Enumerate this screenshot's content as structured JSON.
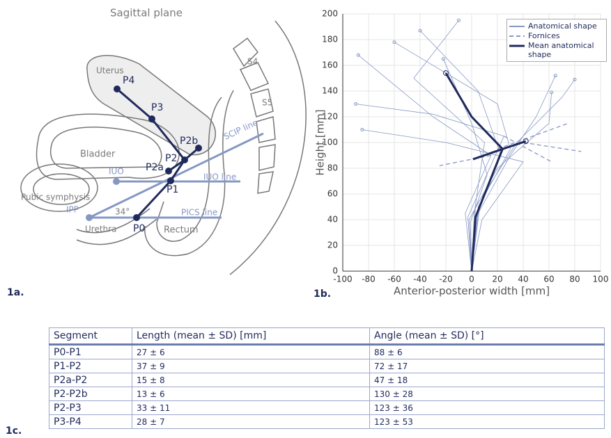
{
  "diagram": {
    "title": "Sagittal plane",
    "panel": "1a.",
    "labels": {
      "uterus": "Uterus",
      "s4": "S4",
      "s5": "S5",
      "bladder": "Bladder",
      "scip_line": "SCIP line",
      "iuo": "IUO",
      "iuo_line": "IUO line",
      "pubic_symphysis": "Pubic symphysis",
      "ipp": "IPP",
      "angle": "34°",
      "urethra": "Urethra",
      "pics_line": "PICS line",
      "rectum": "Rectum"
    },
    "points": [
      "P0",
      "P1",
      "P2a",
      "P2",
      "P2b",
      "P3",
      "P4"
    ]
  },
  "chart_data": {
    "type": "line",
    "panel": "1b.",
    "xlabel": "Anterior-posterior width [mm]",
    "ylabel": "Height [mm]",
    "xlim": [
      -100,
      100
    ],
    "xticks": [
      -100,
      -80,
      -60,
      -40,
      -20,
      0,
      20,
      40,
      60,
      80,
      100
    ],
    "ylim": [
      0,
      200
    ],
    "yticks": [
      0,
      20,
      40,
      60,
      80,
      100,
      120,
      140,
      160,
      180,
      200
    ],
    "grid": true,
    "legend": "upper right",
    "series": [
      {
        "name": "Anatomical shape",
        "color": "#8597c4",
        "style": "solid",
        "end_marker": true,
        "x": [
          0,
          -5,
          15,
          -30,
          -88,
          null,
          0,
          5,
          30,
          20,
          -60,
          null,
          0,
          -2,
          20,
          60,
          62,
          null,
          0,
          2,
          10,
          -45,
          -10,
          null,
          0,
          8,
          40,
          -20,
          -85,
          null,
          0,
          3,
          35,
          70,
          80,
          null,
          0,
          -3,
          25,
          -30,
          -90,
          null,
          0,
          5,
          30,
          50,
          65,
          null,
          0,
          -1,
          12,
          0,
          -22,
          null,
          0,
          6,
          22,
          5,
          -40
        ],
        "values": [
          0,
          45,
          90,
          120,
          168,
          null,
          0,
          50,
          95,
          130,
          178,
          null,
          0,
          40,
          80,
          115,
          139,
          null,
          0,
          45,
          100,
          150,
          195,
          null,
          0,
          40,
          85,
          100,
          110,
          null,
          0,
          50,
          100,
          135,
          149,
          null,
          0,
          42,
          105,
          122,
          130,
          null,
          0,
          45,
          90,
          120,
          152,
          null,
          0,
          38,
          75,
          115,
          165,
          null,
          0,
          48,
          92,
          140,
          187
        ]
      },
      {
        "name": "Fornices",
        "color": "#8597c4",
        "style": "dashed",
        "end_marker": false,
        "x": [
          20,
          75,
          null,
          15,
          -25,
          null,
          40,
          85,
          null,
          25,
          62
        ],
        "values": [
          95,
          115,
          null,
          90,
          82,
          null,
          100,
          93,
          null,
          105,
          85
        ]
      },
      {
        "name": "Mean anatomical shape",
        "color": "#1f2a5c",
        "style": "thick",
        "end_marker": true,
        "x": [
          0,
          3,
          24,
          0,
          -20,
          null,
          1,
          24,
          42
        ],
        "values": [
          0,
          42,
          95,
          120,
          154,
          null,
          87,
          95,
          101
        ]
      }
    ]
  },
  "table": {
    "panel": "1c.",
    "header": [
      "Segment",
      "Length (mean ± SD) [mm]",
      "Angle (mean ± SD) [°]"
    ],
    "rows": [
      [
        "P0-P1",
        "27 ± 6",
        "88 ± 6"
      ],
      [
        "P1-P2",
        "37 ± 9",
        "72 ± 17"
      ],
      [
        "P2a-P2",
        "15 ± 8",
        "47 ± 18"
      ],
      [
        "P2-P2b",
        "13 ± 6",
        "130 ± 28"
      ],
      [
        "P2-P3",
        "33 ± 11",
        "123 ± 36"
      ],
      [
        "P3-P4",
        "28 ± 7",
        "123 ± 53"
      ]
    ]
  }
}
